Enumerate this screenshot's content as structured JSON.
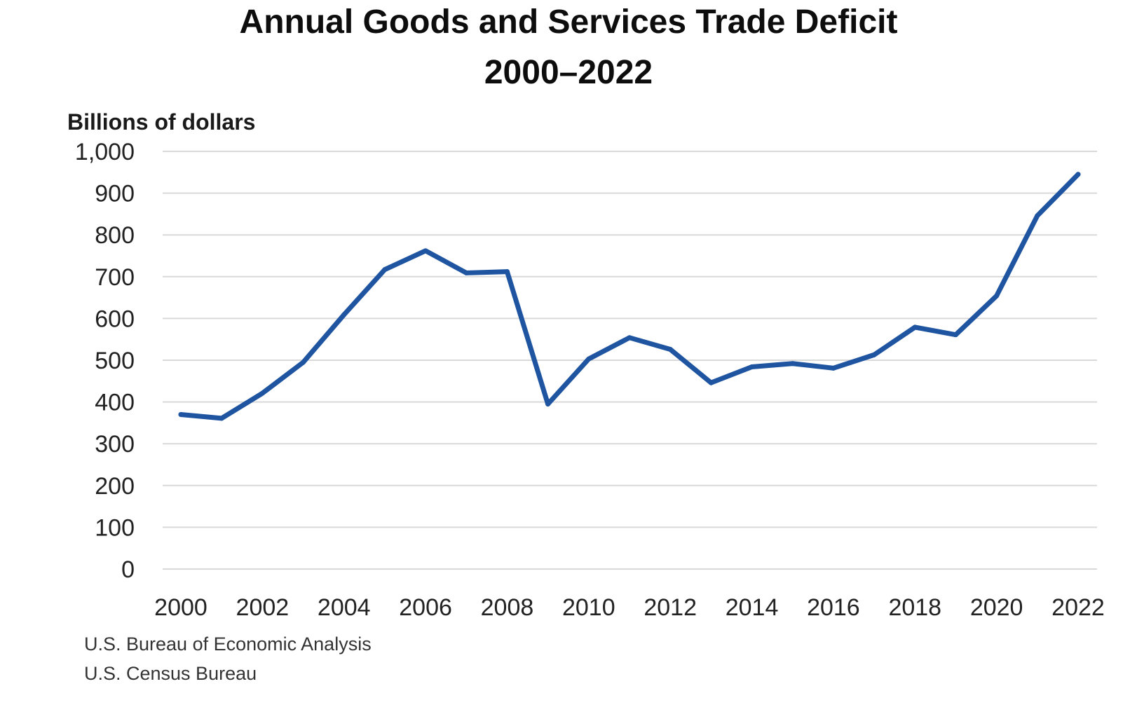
{
  "title_line1": "Annual Goods and Services Trade Deficit",
  "title_line2": "2000–2022",
  "sources": [
    "U.S. Bureau of Economic Analysis",
    "U.S. Census Bureau"
  ],
  "colors": {
    "series": "#1f55a0",
    "grid": "#d9d9d9"
  },
  "chart_data": {
    "type": "line",
    "title": "Annual Goods and Services Trade Deficit 2000–2022",
    "xlabel": "",
    "ylabel": "Billions of dollars",
    "x": [
      2000,
      2001,
      2002,
      2003,
      2004,
      2005,
      2006,
      2007,
      2008,
      2009,
      2010,
      2011,
      2012,
      2013,
      2014,
      2015,
      2016,
      2017,
      2018,
      2019,
      2020,
      2021,
      2022
    ],
    "x_ticks": [
      "2000",
      "2002",
      "2004",
      "2006",
      "2008",
      "2010",
      "2012",
      "2014",
      "2016",
      "2018",
      "2020",
      "2022"
    ],
    "y_ticks": [
      "0",
      "100",
      "200",
      "300",
      "400",
      "500",
      "600",
      "700",
      "800",
      "900",
      "1,000"
    ],
    "ylim": [
      0,
      1000
    ],
    "xlim": [
      2000,
      2022
    ],
    "grid": true,
    "legend": "none",
    "series": [
      {
        "values": [
          370,
          361,
          421,
          495,
          609,
          717,
          762,
          709,
          712,
          395,
          503,
          554,
          526,
          446,
          484,
          492,
          481,
          513,
          579,
          561,
          654,
          846,
          945
        ]
      }
    ]
  }
}
